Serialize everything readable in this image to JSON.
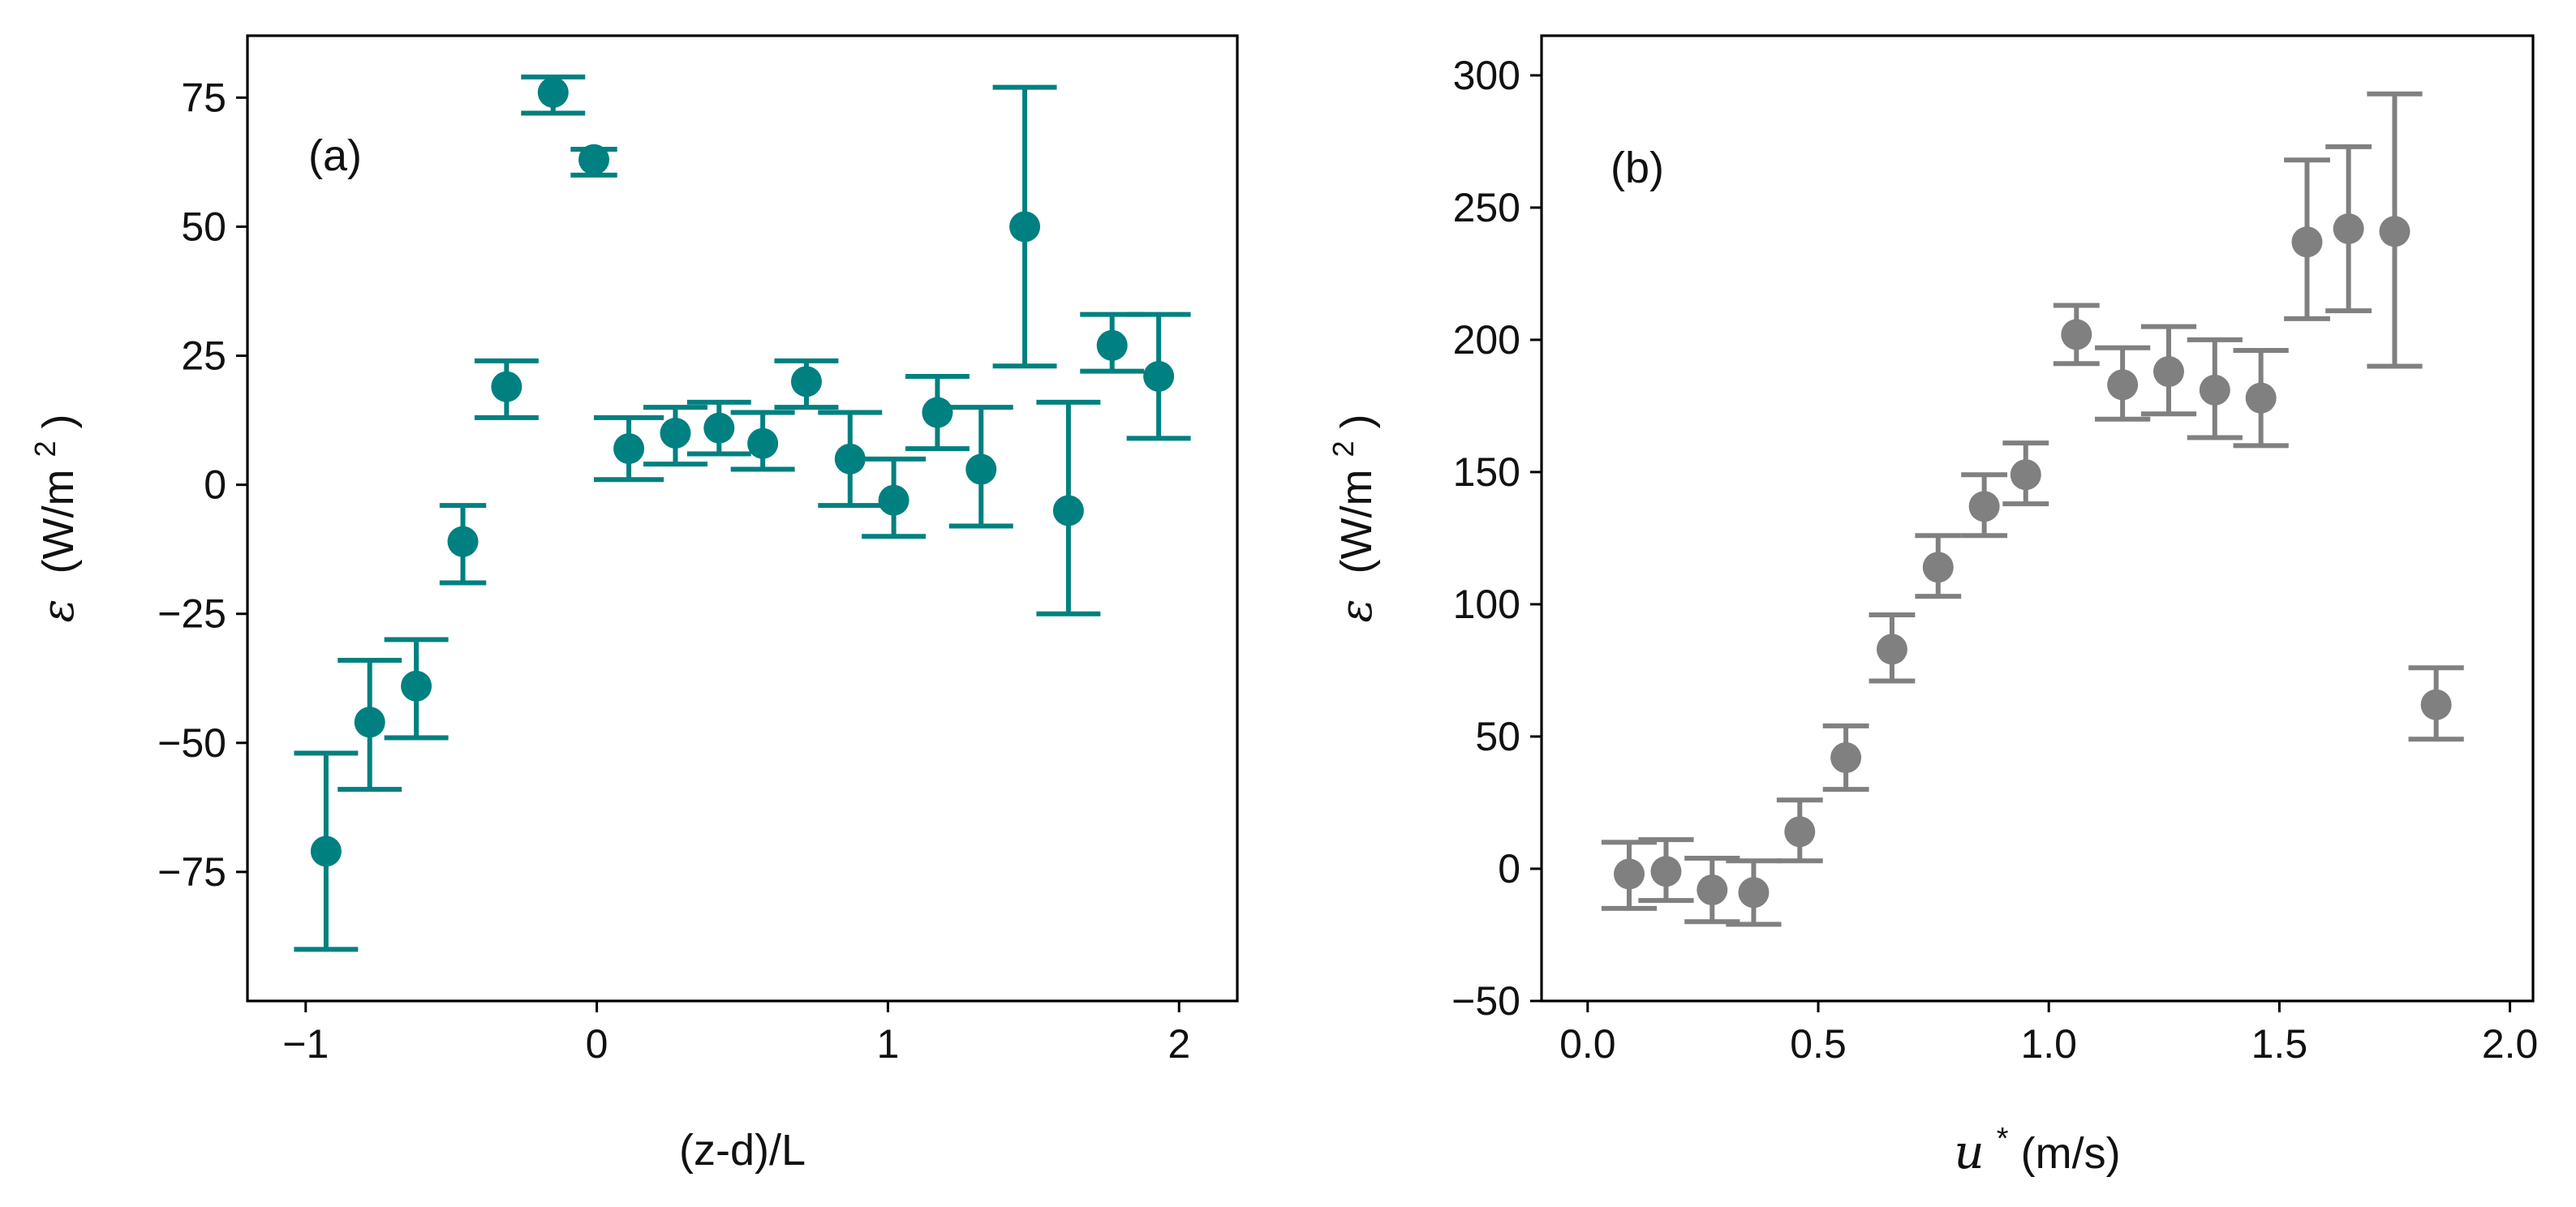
{
  "chart_data": [
    {
      "type": "scatter",
      "panel_label": "(a)",
      "xlabel": "(z-d)/L",
      "ylabel": {
        "symbol": "ε",
        "unit": "(W/m",
        "sup": "2",
        "close": ")"
      },
      "xlim": [
        -1.2,
        2.2
      ],
      "ylim": [
        -100,
        87
      ],
      "xticks": [
        -1,
        0,
        1,
        2
      ],
      "xtick_labels": [
        "−1",
        "0",
        "1",
        "2"
      ],
      "yticks": [
        -75,
        -50,
        -25,
        0,
        25,
        50,
        75
      ],
      "ytick_labels": [
        "−75",
        "−50",
        "−25",
        "0",
        "25",
        "50",
        "75"
      ],
      "color": "#008080",
      "series": [
        {
          "name": "epsilon_vs_stability",
          "points": [
            {
              "x": -0.93,
              "y": -71,
              "yerr_low": -90,
              "yerr_high": -52,
              "xerr": 0.11
            },
            {
              "x": -0.78,
              "y": -46,
              "yerr_low": -59,
              "yerr_high": -34,
              "xerr": 0.11
            },
            {
              "x": -0.62,
              "y": -39,
              "yerr_low": -49,
              "yerr_high": -30,
              "xerr": 0.11
            },
            {
              "x": -0.46,
              "y": -11,
              "yerr_low": -19,
              "yerr_high": -4,
              "xerr": 0.08
            },
            {
              "x": -0.31,
              "y": 19,
              "yerr_low": 13,
              "yerr_high": 24,
              "xerr": 0.11
            },
            {
              "x": -0.15,
              "y": 76,
              "yerr_low": 72,
              "yerr_high": 79,
              "xerr": 0.11
            },
            {
              "x": -0.01,
              "y": 63,
              "yerr_low": 60,
              "yerr_high": 65,
              "xerr": 0.08
            },
            {
              "x": 0.11,
              "y": 7,
              "yerr_low": 1,
              "yerr_high": 13,
              "xerr": 0.12
            },
            {
              "x": 0.27,
              "y": 10,
              "yerr_low": 4,
              "yerr_high": 15,
              "xerr": 0.11
            },
            {
              "x": 0.42,
              "y": 11,
              "yerr_low": 6,
              "yerr_high": 16,
              "xerr": 0.11
            },
            {
              "x": 0.57,
              "y": 8,
              "yerr_low": 3,
              "yerr_high": 14,
              "xerr": 0.11
            },
            {
              "x": 0.72,
              "y": 20,
              "yerr_low": 15,
              "yerr_high": 24,
              "xerr": 0.11
            },
            {
              "x": 0.87,
              "y": 5,
              "yerr_low": -4,
              "yerr_high": 14,
              "xerr": 0.11
            },
            {
              "x": 1.02,
              "y": -3,
              "yerr_low": -10,
              "yerr_high": 5,
              "xerr": 0.11
            },
            {
              "x": 1.17,
              "y": 14,
              "yerr_low": 7,
              "yerr_high": 21,
              "xerr": 0.11
            },
            {
              "x": 1.32,
              "y": 3,
              "yerr_low": -8,
              "yerr_high": 15,
              "xerr": 0.11
            },
            {
              "x": 1.47,
              "y": 50,
              "yerr_low": 23,
              "yerr_high": 77,
              "xerr": 0.11
            },
            {
              "x": 1.62,
              "y": -5,
              "yerr_low": -25,
              "yerr_high": 16,
              "xerr": 0.11
            },
            {
              "x": 1.77,
              "y": 27,
              "yerr_low": 22,
              "yerr_high": 33,
              "xerr": 0.11
            },
            {
              "x": 1.93,
              "y": 21,
              "yerr_low": 9,
              "yerr_high": 33,
              "xerr": 0.11
            }
          ]
        }
      ]
    },
    {
      "type": "scatter",
      "panel_label": "(b)",
      "xlabel": {
        "symbol": "u",
        "sup": "*",
        "unit": " (m/s)"
      },
      "ylabel": {
        "symbol": "ε",
        "unit": "(W/m",
        "sup": "2",
        "close": ")"
      },
      "xlim": [
        -0.1,
        2.05
      ],
      "ylim": [
        -50,
        315
      ],
      "xticks": [
        0.0,
        0.5,
        1.0,
        1.5,
        2.0
      ],
      "xtick_labels": [
        "0.0",
        "0.5",
        "1.0",
        "1.5",
        "2.0"
      ],
      "yticks": [
        -50,
        0,
        50,
        100,
        150,
        200,
        250,
        300
      ],
      "ytick_labels": [
        "−50",
        "0",
        "50",
        "100",
        "150",
        "200",
        "250",
        "300"
      ],
      "color": "#808080",
      "series": [
        {
          "name": "epsilon_vs_friction_velocity",
          "points": [
            {
              "x": 0.09,
              "y": -2,
              "yerr_low": -15,
              "yerr_high": 10,
              "xerr": 0.06
            },
            {
              "x": 0.17,
              "y": -1,
              "yerr_low": -12,
              "yerr_high": 11,
              "xerr": 0.06
            },
            {
              "x": 0.27,
              "y": -8,
              "yerr_low": -20,
              "yerr_high": 4,
              "xerr": 0.06
            },
            {
              "x": 0.36,
              "y": -9,
              "yerr_low": -21,
              "yerr_high": 3,
              "xerr": 0.06
            },
            {
              "x": 0.46,
              "y": 14,
              "yerr_low": 3,
              "yerr_high": 26,
              "xerr": 0.05
            },
            {
              "x": 0.56,
              "y": 42,
              "yerr_low": 30,
              "yerr_high": 54,
              "xerr": 0.05
            },
            {
              "x": 0.66,
              "y": 83,
              "yerr_low": 71,
              "yerr_high": 96,
              "xerr": 0.05
            },
            {
              "x": 0.76,
              "y": 114,
              "yerr_low": 103,
              "yerr_high": 126,
              "xerr": 0.05
            },
            {
              "x": 0.86,
              "y": 137,
              "yerr_low": 126,
              "yerr_high": 149,
              "xerr": 0.05
            },
            {
              "x": 0.95,
              "y": 149,
              "yerr_low": 138,
              "yerr_high": 161,
              "xerr": 0.05
            },
            {
              "x": 1.06,
              "y": 202,
              "yerr_low": 191,
              "yerr_high": 213,
              "xerr": 0.05
            },
            {
              "x": 1.16,
              "y": 183,
              "yerr_low": 170,
              "yerr_high": 197,
              "xerr": 0.06
            },
            {
              "x": 1.26,
              "y": 188,
              "yerr_low": 172,
              "yerr_high": 205,
              "xerr": 0.06
            },
            {
              "x": 1.36,
              "y": 181,
              "yerr_low": 163,
              "yerr_high": 200,
              "xerr": 0.06
            },
            {
              "x": 1.46,
              "y": 178,
              "yerr_low": 160,
              "yerr_high": 196,
              "xerr": 0.06
            },
            {
              "x": 1.56,
              "y": 237,
              "yerr_low": 208,
              "yerr_high": 268,
              "xerr": 0.05
            },
            {
              "x": 1.65,
              "y": 242,
              "yerr_low": 211,
              "yerr_high": 273,
              "xerr": 0.05
            },
            {
              "x": 1.75,
              "y": 241,
              "yerr_low": 190,
              "yerr_high": 293,
              "xerr": 0.06
            },
            {
              "x": 1.84,
              "y": 62,
              "yerr_low": 49,
              "yerr_high": 76,
              "xerr": 0.06
            }
          ]
        }
      ]
    }
  ]
}
